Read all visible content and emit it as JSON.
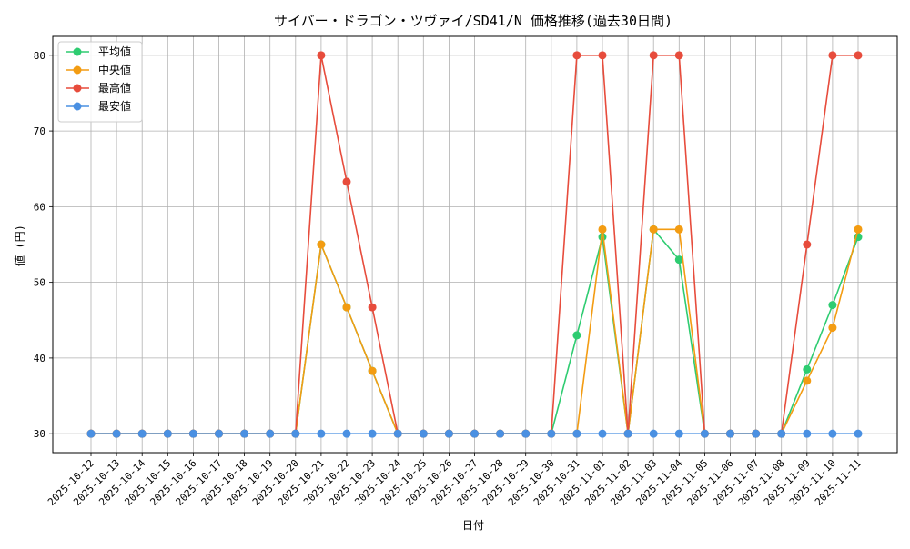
{
  "chart_data": {
    "type": "line",
    "title": "サイバー・ドラゴン・ツヴァイ/SD41/N 価格推移(過去30日間)",
    "xlabel": "日付",
    "ylabel": "値 (円)",
    "ylim": [
      27.5,
      82.5
    ],
    "yticks": [
      30,
      40,
      50,
      60,
      70,
      80
    ],
    "grid": true,
    "legend_position": "top-left",
    "categories": [
      "2025-10-12",
      "2025-10-13",
      "2025-10-14",
      "2025-10-15",
      "2025-10-16",
      "2025-10-17",
      "2025-10-18",
      "2025-10-19",
      "2025-10-20",
      "2025-10-21",
      "2025-10-22",
      "2025-10-23",
      "2025-10-24",
      "2025-10-25",
      "2025-10-26",
      "2025-10-27",
      "2025-10-28",
      "2025-10-29",
      "2025-10-30",
      "2025-10-31",
      "2025-11-01",
      "2025-11-02",
      "2025-11-03",
      "2025-11-04",
      "2025-11-05",
      "2025-11-06",
      "2025-11-07",
      "2025-11-08",
      "2025-11-09",
      "2025-11-10",
      "2025-11-11"
    ],
    "series": [
      {
        "name": "平均値",
        "color": "#2ecc71",
        "values": [
          30,
          30,
          30,
          30,
          30,
          30,
          30,
          30,
          30,
          55,
          46.7,
          38.3,
          30,
          30,
          30,
          30,
          30,
          30,
          30,
          43,
          56,
          30,
          57,
          53,
          30,
          30,
          30,
          30,
          38.5,
          47,
          56
        ]
      },
      {
        "name": "中央値",
        "color": "#f39c12",
        "values": [
          30,
          30,
          30,
          30,
          30,
          30,
          30,
          30,
          30,
          55,
          46.7,
          38.3,
          30,
          30,
          30,
          30,
          30,
          30,
          30,
          30,
          57,
          30,
          57,
          57,
          30,
          30,
          30,
          30,
          37,
          44,
          57
        ]
      },
      {
        "name": "最高値",
        "color": "#e74c3c",
        "values": [
          30,
          30,
          30,
          30,
          30,
          30,
          30,
          30,
          30,
          80,
          63.3,
          46.7,
          30,
          30,
          30,
          30,
          30,
          30,
          30,
          80,
          80,
          30,
          80,
          80,
          30,
          30,
          30,
          30,
          55,
          80,
          80
        ]
      },
      {
        "name": "最安値",
        "color": "#4a90e2",
        "values": [
          30,
          30,
          30,
          30,
          30,
          30,
          30,
          30,
          30,
          30,
          30,
          30,
          30,
          30,
          30,
          30,
          30,
          30,
          30,
          30,
          30,
          30,
          30,
          30,
          30,
          30,
          30,
          30,
          30,
          30,
          30
        ]
      }
    ]
  }
}
